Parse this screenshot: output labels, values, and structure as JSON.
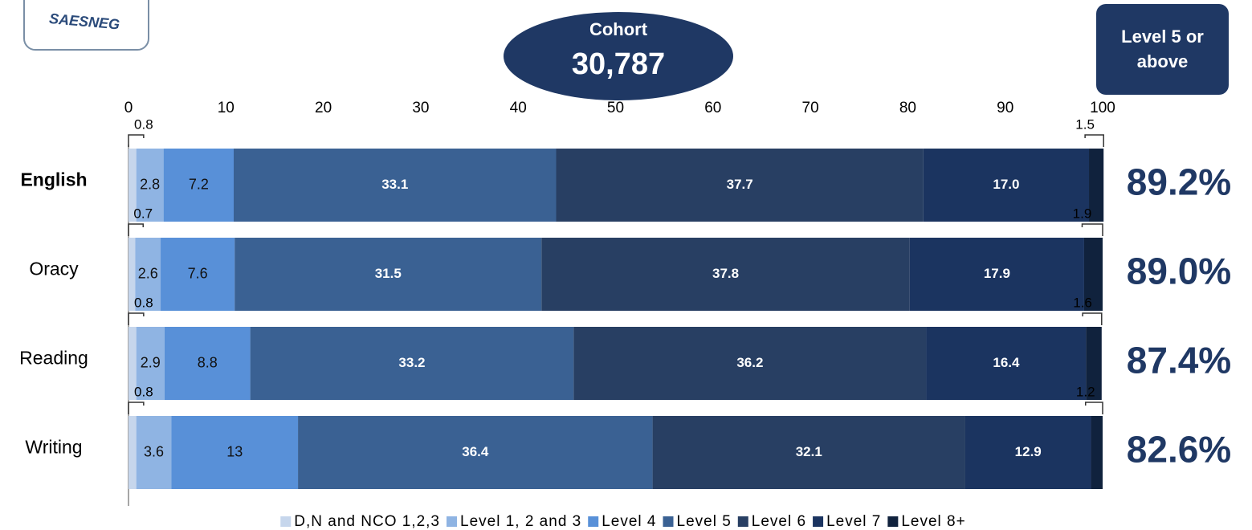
{
  "chart_data": {
    "type": "stacked-bar-horizontal",
    "logo": "SAESNEG",
    "cohort_label": "Cohort",
    "cohort": "30,787",
    "summary_header": "Level 5 or above",
    "summary": [
      "89.2%",
      "89.0%",
      "87.4%",
      "82.6%"
    ],
    "categories": [
      "English",
      "Oracy",
      "Reading",
      "Writing"
    ],
    "xlim": [
      0,
      100
    ],
    "xticks": [
      0,
      10,
      20,
      30,
      40,
      50,
      60,
      70,
      80,
      90,
      100
    ],
    "legend": "bottom",
    "series": [
      {
        "name": "D,N and NCO 1,2,3",
        "color": "#c6d6ec",
        "values": [
          0.8,
          0.7,
          0.8,
          0.8
        ]
      },
      {
        "name": "Level 1, 2 and 3",
        "color": "#8fb4e3",
        "values": [
          2.8,
          2.6,
          2.9,
          3.6
        ]
      },
      {
        "name": "Level 4",
        "color": "#5890d8",
        "values": [
          7.2,
          7.6,
          8.8,
          13
        ]
      },
      {
        "name": "Level 5",
        "color": "#3a6193",
        "values": [
          33.1,
          31.5,
          33.2,
          36.4
        ]
      },
      {
        "name": "Level 6",
        "color": "#283f63",
        "values": [
          37.7,
          37.8,
          36.2,
          32.1
        ]
      },
      {
        "name": "Level 7",
        "color": "#1b3460",
        "values": [
          17.0,
          17.9,
          16.4,
          12.9
        ],
        "value_labels": [
          "17.0",
          "17.9",
          "16.4",
          "12.9"
        ]
      },
      {
        "name": "Level 8+",
        "color": "#10223d",
        "values": [
          1.5,
          1.9,
          1.6,
          1.2
        ]
      }
    ]
  }
}
